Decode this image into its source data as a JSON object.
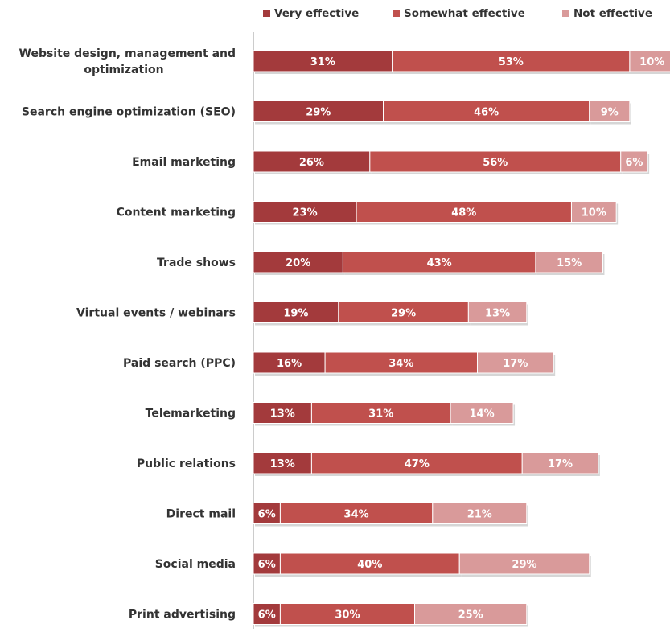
{
  "chart_data": {
    "type": "bar",
    "orientation": "horizontal",
    "stacked": true,
    "legend_position": "top-right",
    "categories": [
      "Website design, management and optimization",
      "Search engine optimization (SEO)",
      "Email marketing",
      "Content marketing",
      "Trade shows",
      "Virtual events / webinars",
      "Paid search (PPC)",
      "Telemarketing",
      "Public relations",
      "Direct mail",
      "Social media",
      "Print advertising"
    ],
    "category_lines": [
      [
        "Website design, management and",
        "optimization"
      ],
      [
        "Search engine optimization (SEO)"
      ],
      [
        "Email marketing"
      ],
      [
        "Content marketing"
      ],
      [
        "Trade shows"
      ],
      [
        "Virtual events / webinars"
      ],
      [
        "Paid search (PPC)"
      ],
      [
        "Telemarketing"
      ],
      [
        "Public relations"
      ],
      [
        "Direct mail"
      ],
      [
        "Social media"
      ],
      [
        "Print advertising"
      ]
    ],
    "series": [
      {
        "name": "Very effective",
        "color": "#a33a3c",
        "values": [
          31,
          29,
          26,
          23,
          20,
          19,
          16,
          13,
          13,
          6,
          6,
          6
        ]
      },
      {
        "name": "Somewhat effective",
        "color": "#c0504d",
        "values": [
          53,
          46,
          56,
          48,
          43,
          29,
          34,
          31,
          47,
          34,
          40,
          30
        ]
      },
      {
        "name": "Not effective",
        "color": "#d99a9a",
        "values": [
          10,
          9,
          6,
          10,
          15,
          13,
          17,
          14,
          17,
          21,
          29,
          25
        ]
      }
    ],
    "value_suffix": "%",
    "xlim": [
      0,
      93
    ],
    "grid": false
  }
}
